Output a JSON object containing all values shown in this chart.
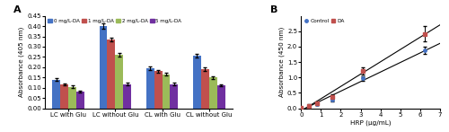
{
  "panel_A": {
    "categories": [
      "LC with Glu",
      "LC without Glu",
      "CL with Glu",
      "CL without Glu"
    ],
    "bar_groups": {
      "0 mg/L-DA": [
        0.14,
        0.4,
        0.195,
        0.255
      ],
      "1 mg/L-DA": [
        0.115,
        0.335,
        0.18,
        0.19
      ],
      "2 mg/L-DA": [
        0.105,
        0.262,
        0.165,
        0.15
      ],
      "5 mg/L-DA": [
        0.082,
        0.118,
        0.118,
        0.113
      ]
    },
    "errors": {
      "0 mg/L-DA": [
        0.006,
        0.012,
        0.008,
        0.009
      ],
      "1 mg/L-DA": [
        0.005,
        0.01,
        0.006,
        0.007
      ],
      "2 mg/L-DA": [
        0.005,
        0.009,
        0.006,
        0.006
      ],
      "5 mg/L-DA": [
        0.004,
        0.005,
        0.005,
        0.005
      ]
    },
    "colors": [
      "#4472C4",
      "#C0504D",
      "#9BBB59",
      "#7030A0"
    ],
    "ylabel": "Absorbance (405 nm)",
    "ylim": [
      0,
      0.45
    ],
    "yticks": [
      0.0,
      0.05,
      0.1,
      0.15,
      0.2,
      0.25,
      0.3,
      0.35,
      0.4,
      0.45
    ]
  },
  "panel_B": {
    "x": [
      0.0,
      0.39,
      0.78,
      1.56,
      3.125,
      6.25
    ],
    "control_y": [
      0.03,
      0.07,
      0.13,
      0.28,
      0.97,
      1.88
    ],
    "control_err": [
      0.02,
      0.03,
      0.04,
      0.05,
      0.08,
      0.12
    ],
    "da_y": [
      0.03,
      0.08,
      0.16,
      0.38,
      1.22,
      2.42
    ],
    "da_err": [
      0.02,
      0.04,
      0.06,
      0.08,
      0.12,
      0.25
    ],
    "control_color": "#4472C4",
    "da_color": "#C0504D",
    "ylabel": "Absorbance (450 nm)",
    "xlabel": "HRP (μg/mL)",
    "xlim": [
      0,
      7
    ],
    "ylim": [
      0,
      3.0
    ],
    "yticks": [
      0.0,
      0.5,
      1.0,
      1.5,
      2.0,
      2.5
    ]
  }
}
